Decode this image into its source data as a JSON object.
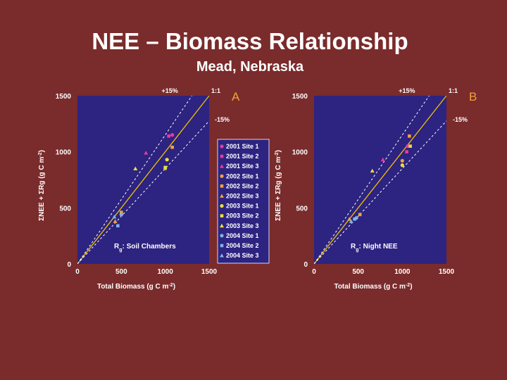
{
  "slide": {
    "title": "NEE – Biomass Relationship",
    "subtitle": "Mead, Nebraska"
  },
  "colors": {
    "background": "#7a2b2b",
    "plot_bg": "#2d2380",
    "panel_letter": "#f2a33a",
    "one_to_one": "#f2c200",
    "text": "#ffffff"
  },
  "chart_data": [
    {
      "type": "scatter",
      "panel_label": "A",
      "annotation": "Rg: Soil Chambers",
      "xlabel": "Total Biomass (g C m-2)",
      "ylabel": "ΣNEE + ΣRg (g C m-2)",
      "xlim": [
        0,
        1500
      ],
      "ylim": [
        0,
        1500
      ],
      "xticks": [
        "0",
        "500",
        "1000",
        "1500"
      ],
      "yticks": [
        "0",
        "500",
        "1000",
        "1500"
      ],
      "reference_lines": [
        {
          "label": "1:1",
          "slope": 1.0,
          "style": "solid"
        },
        {
          "label": "+15%",
          "slope": 1.15,
          "style": "dashed"
        },
        {
          "label": "-15%",
          "slope": 0.85,
          "style": "dashed"
        }
      ],
      "series": [
        {
          "name": "2001 Site 1",
          "color": "#e83aa0",
          "marker": "circle",
          "points": [
            [
              1080,
              1150
            ]
          ]
        },
        {
          "name": "2001 Site 2",
          "color": "#e83aa0",
          "marker": "square",
          "points": [
            [
              1040,
              1140
            ]
          ]
        },
        {
          "name": "2001 Site 3",
          "color": "#e83aa0",
          "marker": "triangle",
          "points": [
            [
              780,
              990
            ]
          ]
        },
        {
          "name": "2002 Site 1",
          "color": "#f2a33a",
          "marker": "circle",
          "points": [
            [
              1000,
              850
            ]
          ]
        },
        {
          "name": "2002 Site 2",
          "color": "#f2a33a",
          "marker": "square",
          "points": [
            [
              1080,
              1040
            ],
            [
              500,
              460
            ]
          ]
        },
        {
          "name": "2002 Site 3",
          "color": "#f2a33a",
          "marker": "triangle",
          "points": [
            [
              430,
              380
            ]
          ]
        },
        {
          "name": "2003 Site 1",
          "color": "#e8e040",
          "marker": "circle",
          "points": [
            [
              1020,
              930
            ]
          ]
        },
        {
          "name": "2003 Site 2",
          "color": "#e8e040",
          "marker": "square",
          "points": [
            [
              1000,
              860
            ]
          ]
        },
        {
          "name": "2003 Site 3",
          "color": "#e8e040",
          "marker": "triangle",
          "points": [
            [
              660,
              850
            ]
          ]
        },
        {
          "name": "2004 Site 1",
          "color": "#7fb2e6",
          "marker": "circle",
          "points": [
            [
              500,
              440
            ]
          ]
        },
        {
          "name": "2004 Site 2",
          "color": "#7fb2e6",
          "marker": "square",
          "points": [
            [
              460,
              340
            ]
          ]
        },
        {
          "name": "2004 Site 3",
          "color": "#7fb2e6",
          "marker": "triangle",
          "points": [
            [
              420,
              420
            ]
          ]
        }
      ]
    },
    {
      "type": "scatter",
      "panel_label": "B",
      "annotation": "Rg: Night NEE",
      "xlabel": "Total Biomass (g C m-2)",
      "ylabel": "ΣNEE + ΣRg (g C m-2)",
      "xlim": [
        0,
        1500
      ],
      "ylim": [
        0,
        1500
      ],
      "xticks": [
        "0",
        "500",
        "1000",
        "1500"
      ],
      "yticks": [
        "0",
        "500",
        "1000",
        "1500"
      ],
      "reference_lines": [
        {
          "label": "1:1",
          "slope": 1.0,
          "style": "solid"
        },
        {
          "label": "+15%",
          "slope": 1.15,
          "style": "dashed"
        },
        {
          "label": "-15%",
          "slope": 0.85,
          "style": "dashed"
        }
      ],
      "series": [
        {
          "name": "2001 Site 1",
          "color": "#e83aa0",
          "marker": "circle",
          "points": [
            [
              1060,
              1050
            ]
          ]
        },
        {
          "name": "2001 Site 2",
          "color": "#e83aa0",
          "marker": "square",
          "points": [
            [
              1050,
              1000
            ]
          ]
        },
        {
          "name": "2001 Site 3",
          "color": "#e83aa0",
          "marker": "triangle",
          "points": [
            [
              780,
              930
            ]
          ]
        },
        {
          "name": "2002 Site 1",
          "color": "#f2a33a",
          "marker": "circle",
          "points": [
            [
              1000,
              920
            ]
          ]
        },
        {
          "name": "2002 Site 2",
          "color": "#f2a33a",
          "marker": "square",
          "points": [
            [
              1080,
              1140
            ],
            [
              520,
              440
            ]
          ]
        },
        {
          "name": "2002 Site 3",
          "color": "#f2a33a",
          "marker": "triangle",
          "points": [
            [
              400,
              400
            ]
          ]
        },
        {
          "name": "2003 Site 1",
          "color": "#e8e040",
          "marker": "circle",
          "points": [
            [
              1000,
              880
            ]
          ]
        },
        {
          "name": "2003 Site 2",
          "color": "#e8e040",
          "marker": "square",
          "points": [
            [
              1090,
              1050
            ]
          ]
        },
        {
          "name": "2003 Site 3",
          "color": "#e8e040",
          "marker": "triangle",
          "points": [
            [
              660,
              830
            ]
          ]
        },
        {
          "name": "2004 Site 1",
          "color": "#7fb2e6",
          "marker": "circle",
          "points": [
            [
              480,
              410
            ]
          ]
        },
        {
          "name": "2004 Site 2",
          "color": "#7fb2e6",
          "marker": "square",
          "points": [
            [
              460,
              400
            ]
          ]
        },
        {
          "name": "2004 Site 3",
          "color": "#7fb2e6",
          "marker": "triangle",
          "points": [
            [
              420,
              380
            ]
          ]
        }
      ]
    }
  ]
}
